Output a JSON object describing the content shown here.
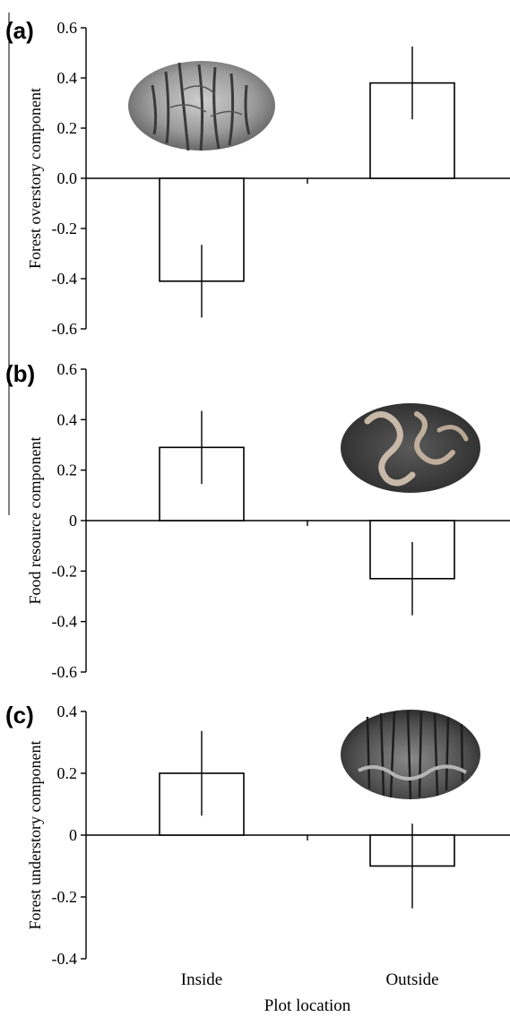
{
  "chart_data": [
    {
      "panel_label": "(a)",
      "type": "bar",
      "categories": [
        "Inside",
        "Outside"
      ],
      "values": [
        -0.41,
        0.38
      ],
      "errors": [
        0.145,
        0.145
      ],
      "ylabel": "Forest overstory component",
      "ylim": [
        -0.6,
        0.6
      ],
      "yticks": [
        "0.6",
        "0.4",
        "0.2",
        "0.0",
        "-0.2",
        "-0.4",
        "-0.6"
      ],
      "photo": "forest-canopy-photo"
    },
    {
      "panel_label": "(b)",
      "type": "bar",
      "categories": [
        "Inside",
        "Outside"
      ],
      "values": [
        0.29,
        -0.23
      ],
      "errors": [
        0.145,
        0.145
      ],
      "ylabel": "Food resource component",
      "ylim": [
        -0.6,
        0.6
      ],
      "yticks": [
        "0.6",
        "0.4",
        "0.2",
        "0",
        "-0.2",
        "-0.4",
        "-0.6"
      ],
      "photo": "earthworm-photo"
    },
    {
      "panel_label": "(c)",
      "type": "bar",
      "categories": [
        "Inside",
        "Outside"
      ],
      "values": [
        0.2,
        -0.1
      ],
      "errors": [
        0.137,
        0.137
      ],
      "ylabel": "Forest understory component",
      "ylim": [
        -0.4,
        0.4
      ],
      "yticks": [
        "0.4",
        "0.2",
        "0",
        "-0.2",
        "-0.4"
      ],
      "photo": "forest-understory-photo"
    }
  ],
  "x_axis": {
    "categories": [
      "Inside",
      "Outside"
    ],
    "xlabel": "Plot location"
  },
  "colors": {
    "bar_fill": "#ffffff",
    "bar_stroke": "#000000",
    "axis": "#000000"
  }
}
